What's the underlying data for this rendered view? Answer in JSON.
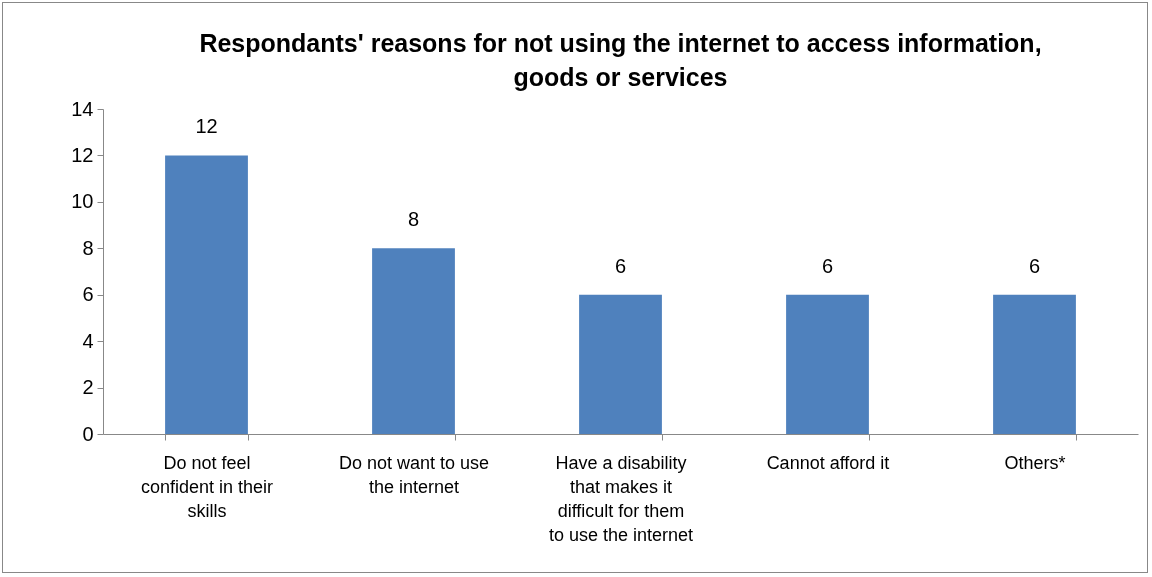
{
  "chart_data": {
    "type": "bar",
    "title": "Respondants' reasons for not using the internet to access information, goods or services",
    "categories": [
      "Do not feel confident in their skills",
      "Do not want to use the internet",
      "Have a disability that makes it difficult for them to use the internet",
      "Cannot afford it",
      "Others*"
    ],
    "values": [
      12,
      8,
      6,
      6,
      6
    ],
    "color": "#4f81bd",
    "ylim": [
      0,
      14
    ],
    "yticks": [
      0,
      2,
      4,
      6,
      8,
      10,
      12,
      14
    ],
    "data_labels": true,
    "grid": false
  }
}
